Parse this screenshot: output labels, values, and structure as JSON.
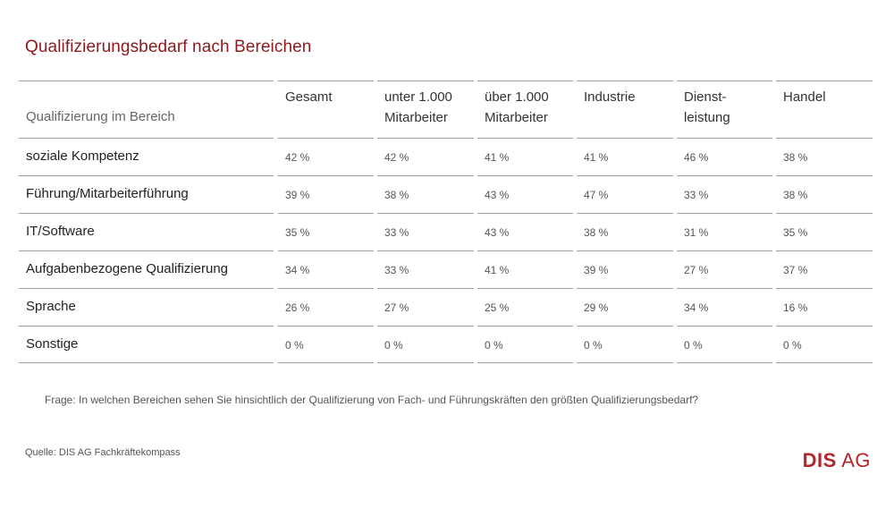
{
  "title": "Qualifizierungsbedarf nach Bereichen",
  "chart_data": {
    "type": "table",
    "title": "Qualifizierungsbedarf nach Bereichen",
    "row_header": "Qualifizierung im Bereich",
    "columns": [
      "Gesamt",
      "unter 1.000 Mitarbeiter",
      "über 1.000 Mitarbeiter",
      "Industrie",
      "Dienst-leistung",
      "Handel"
    ],
    "column_lines": [
      [
        "Gesamt"
      ],
      [
        "unter 1.000",
        "Mitarbeiter"
      ],
      [
        "über 1.000",
        "Mitarbeiter"
      ],
      [
        "Industrie"
      ],
      [
        "Dienst-",
        "leistung"
      ],
      [
        "Handel"
      ]
    ],
    "rows": [
      {
        "label": "soziale Kompetenz",
        "values": [
          "42 %",
          "42 %",
          "41 %",
          "41 %",
          "46 %",
          "38 %"
        ]
      },
      {
        "label": "Führung/Mitarbeiterführung",
        "values": [
          "39 %",
          "38 %",
          "43 %",
          "47 %",
          "33 %",
          "38 %"
        ]
      },
      {
        "label": "IT/Software",
        "values": [
          "35 %",
          "33 %",
          "43 %",
          "38 %",
          "31 %",
          "35 %"
        ]
      },
      {
        "label": "Aufgabenbezogene Qualifizierung",
        "values": [
          "34 %",
          "33 %",
          "41 %",
          "39 %",
          "27 %",
          "37 %"
        ]
      },
      {
        "label": "Sprache",
        "values": [
          "26 %",
          "27 %",
          "25 %",
          "29 %",
          "34 %",
          "16 %"
        ]
      },
      {
        "label": "Sonstige",
        "values": [
          "0 %",
          "0 %",
          "0 %",
          "0 %",
          "0 %",
          "0 %"
        ]
      }
    ]
  },
  "question": "Frage: In welchen Bereichen sehen Sie hinsichtlich der Qualifizierung von Fach- und Führungskräften den größten Qualifizierungsbedarf?",
  "source": "Quelle:  DIS AG Fachkräftekompass",
  "logo": {
    "brand": "DIS",
    "suffix": " AG",
    "color": "#b3262d"
  },
  "accent_color": "#8b1a1f"
}
